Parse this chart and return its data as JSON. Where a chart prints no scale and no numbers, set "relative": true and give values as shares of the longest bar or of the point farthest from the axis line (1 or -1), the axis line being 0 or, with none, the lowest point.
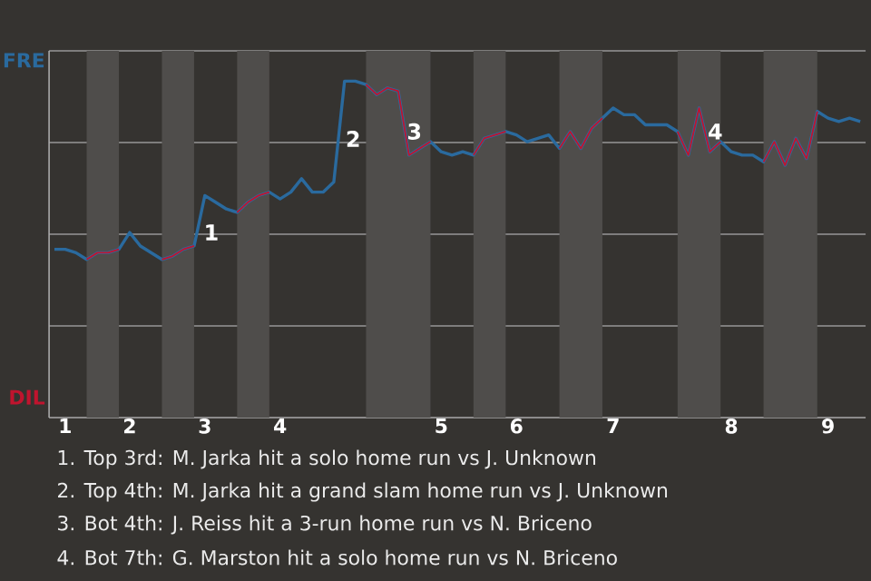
{
  "chart_data": {
    "type": "line",
    "relative": true,
    "categories": [
      null,
      "1",
      null,
      null,
      null,
      null,
      null,
      "2",
      null,
      null,
      null,
      null,
      null,
      null,
      "3",
      null,
      null,
      null,
      null,
      null,
      null,
      "4",
      null,
      null,
      null,
      null,
      null,
      null,
      null,
      null,
      null,
      null,
      null,
      null,
      null,
      null,
      "5",
      null,
      null,
      null,
      null,
      null,
      null,
      "6",
      null,
      null,
      null,
      null,
      null,
      null,
      null,
      null,
      "7",
      null,
      null,
      null,
      null,
      null,
      null,
      null,
      null,
      null,
      null,
      "8",
      null,
      null,
      null,
      null,
      null,
      null,
      null,
      null,
      "9",
      null,
      null,
      null
    ],
    "grid": "y",
    "marker": "none",
    "line_style": "solid",
    "series": [
      {
        "name": "FRE",
        "color": "#2a6a9e",
        "values": [
          0.5,
          0.5,
          0.49,
          0.47,
          0.49,
          0.49,
          0.5,
          0.55,
          0.51,
          0.49,
          0.47,
          0.48,
          0.5,
          0.51,
          0.66,
          0.64,
          0.62,
          0.61,
          0.64,
          0.66,
          0.67,
          0.65,
          0.67,
          0.71,
          0.67,
          0.67,
          0.7,
          1,
          1,
          0.99,
          0.96,
          0.98,
          0.97,
          0.78,
          0.8,
          0.82,
          0.79,
          0.78,
          0.79,
          0.78,
          0.83,
          0.84,
          0.85,
          0.84,
          0.82,
          0.83,
          0.84,
          0.8,
          0.85,
          0.8,
          0.86,
          0.89,
          0.92,
          0.9,
          0.9,
          0.87,
          0.87,
          0.87,
          0.85,
          0.78,
          0.92,
          0.79,
          0.82,
          0.79,
          0.78,
          0.78,
          0.76,
          0.82,
          0.75,
          0.83,
          0.77,
          0.91,
          0.89,
          0.88,
          0.89,
          0.88
        ]
      },
      {
        "name": "DIL",
        "color": "#c0142e",
        "values": [
          null,
          null,
          null,
          0.47,
          0.49,
          0.49,
          0.5,
          null,
          null,
          null,
          0.47,
          0.48,
          0.5,
          0.51,
          null,
          null,
          null,
          0.61,
          0.64,
          0.66,
          0.67,
          null,
          null,
          null,
          null,
          null,
          null,
          null,
          null,
          0.99,
          0.96,
          0.98,
          0.97,
          0.78,
          0.8,
          0.82,
          null,
          null,
          null,
          0.78,
          0.83,
          0.84,
          0.85,
          null,
          null,
          null,
          null,
          0.8,
          0.85,
          0.8,
          0.86,
          0.89,
          null,
          null,
          null,
          null,
          null,
          null,
          0.85,
          0.78,
          0.92,
          0.79,
          0.82,
          null,
          null,
          null,
          0.76,
          0.82,
          0.75,
          0.83,
          0.77,
          0.91,
          null,
          null,
          null,
          null
        ]
      }
    ],
    "annotations": [
      "1",
      "2",
      "3",
      "4",
      "1. Top 3rd: M. Jarka hit a solo home run vs J. Unknown",
      "2. Top 4th: M. Jarka hit a grand slam home run vs J. Unknown",
      "3. Bot 4th: J. Reiss hit a 3-run home run vs N. Briceno",
      "4. Bot 7th: G. Marston hit a solo home run vs N. Briceno"
    ]
  }
}
